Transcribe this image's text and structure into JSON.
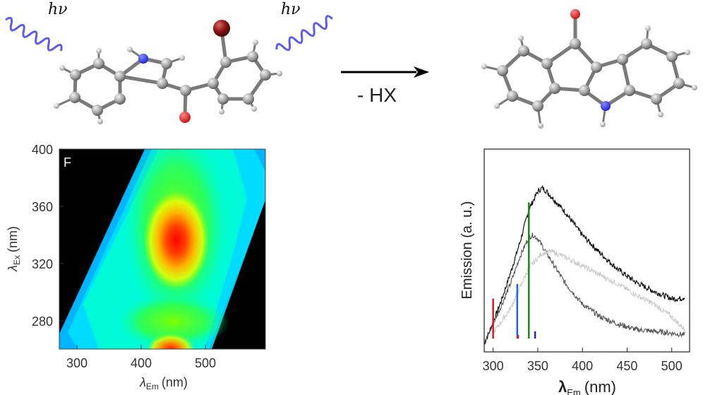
{
  "reaction": {
    "light_label": "hν",
    "arrow_label": "- HX"
  },
  "colors": {
    "carbon": "#8a8a8a",
    "nitrogen": "#1f23d6",
    "oxygen": "#d81b1b",
    "bromine": "#7a0f0f",
    "photon": "#5b5bf0",
    "heat_black": "#000000"
  },
  "chart_data": [
    {
      "type": "heatmap",
      "panel_label": "F",
      "xlabel_main": "λ",
      "xlabel_sub": "Em",
      "xlabel_unit": "(nm)",
      "ylabel_main": "λ",
      "ylabel_sub": "Ex",
      "ylabel_unit": "(nm)",
      "xlim": [
        275,
        590
      ],
      "ylim": [
        260,
        400
      ],
      "xticks": [
        300,
        400,
        500
      ],
      "yticks": [
        280,
        320,
        360,
        400
      ],
      "hotspots": [
        {
          "em": 455,
          "ex": 335,
          "level": "max"
        },
        {
          "em": 460,
          "ex": 262,
          "level": "high"
        }
      ]
    },
    {
      "type": "line",
      "xlabel_main": "λ",
      "xlabel_sub": "Em",
      "xlabel_unit": "(nm)",
      "ylabel": "Emission (a. u.)",
      "xlim": [
        290,
        520
      ],
      "xticks": [
        300,
        350,
        400,
        450,
        500
      ],
      "series": [
        {
          "color": "#000000",
          "x": [
            290,
            300,
            310,
            320,
            330,
            340,
            350,
            355,
            360,
            380,
            400,
            420,
            440,
            460,
            480,
            500,
            510,
            515
          ],
          "y": [
            0.02,
            0.14,
            0.27,
            0.42,
            0.58,
            0.76,
            0.86,
            0.88,
            0.86,
            0.75,
            0.62,
            0.52,
            0.43,
            0.36,
            0.31,
            0.27,
            0.27,
            0.28
          ]
        },
        {
          "color": "#555555",
          "x": [
            290,
            300,
            310,
            320,
            330,
            340,
            345,
            350,
            360,
            380,
            400,
            420,
            440,
            460,
            480,
            500,
            515
          ],
          "y": [
            0.02,
            0.13,
            0.24,
            0.36,
            0.5,
            0.61,
            0.62,
            0.6,
            0.52,
            0.36,
            0.24,
            0.17,
            0.13,
            0.1,
            0.09,
            0.08,
            0.07
          ]
        },
        {
          "color": "#cccccc",
          "x": [
            300,
            320,
            340,
            355,
            365,
            380,
            400,
            420,
            440,
            460,
            480,
            500,
            510,
            515
          ],
          "y": [
            0.08,
            0.22,
            0.44,
            0.52,
            0.53,
            0.5,
            0.45,
            0.4,
            0.35,
            0.29,
            0.24,
            0.17,
            0.12,
            0.1
          ]
        }
      ],
      "sticks": [
        {
          "x": 300,
          "color": "#d81b1b",
          "h": 0.22
        },
        {
          "x": 327,
          "color": "#1f63e0",
          "h": 0.3
        },
        {
          "x": 328,
          "color": "#d81b1b",
          "h": 0.02
        },
        {
          "x": 340,
          "color": "#1a8a1a",
          "h": 0.75
        },
        {
          "x": 347,
          "color": "#1f23d6",
          "h": 0.04
        }
      ]
    }
  ]
}
